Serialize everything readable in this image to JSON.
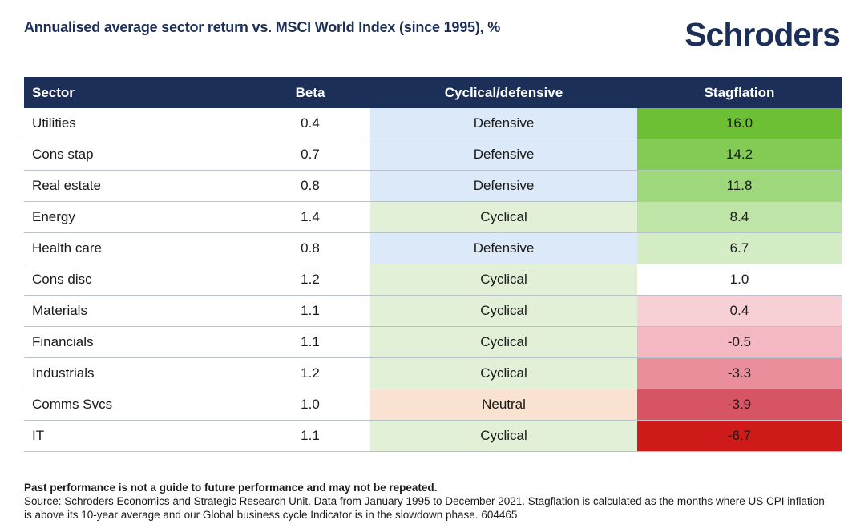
{
  "title": "Annualised average sector return vs. MSCI World Index (since 1995), %",
  "logo_text": "Schroders",
  "colors": {
    "header_bg": "#1c2f59",
    "defensive": "#dbe9f9",
    "cyclical": "#e2f0d8",
    "neutral": "#f9e2d2"
  },
  "chart_data": {
    "type": "table",
    "title": "Annualised average sector return vs. MSCI World Index (since 1995), %",
    "columns": [
      "Sector",
      "Beta",
      "Cyclical/defensive",
      "Stagflation"
    ],
    "rows": [
      {
        "sector": "Utilities",
        "beta": "0.4",
        "classification": "Defensive",
        "stagflation": "16.0",
        "stag_color": "#6dbf33"
      },
      {
        "sector": "Cons stap",
        "beta": "0.7",
        "classification": "Defensive",
        "stagflation": "14.2",
        "stag_color": "#84cb55"
      },
      {
        "sector": "Real estate",
        "beta": "0.8",
        "classification": "Defensive",
        "stagflation": "11.8",
        "stag_color": "#9fd77c"
      },
      {
        "sector": "Energy",
        "beta": "1.4",
        "classification": "Cyclical",
        "stagflation": "8.4",
        "stag_color": "#bfe4a8"
      },
      {
        "sector": "Health care",
        "beta": "0.8",
        "classification": "Defensive",
        "stagflation": "6.7",
        "stag_color": "#d4edc4"
      },
      {
        "sector": "Cons disc",
        "beta": "1.2",
        "classification": "Cyclical",
        "stagflation": "1.0",
        "stag_color": "#ffffff"
      },
      {
        "sector": "Materials",
        "beta": "1.1",
        "classification": "Cyclical",
        "stagflation": "0.4",
        "stag_color": "#f7d0d6"
      },
      {
        "sector": "Financials",
        "beta": "1.1",
        "classification": "Cyclical",
        "stagflation": "-0.5",
        "stag_color": "#f3b8c1"
      },
      {
        "sector": "Industrials",
        "beta": "1.2",
        "classification": "Cyclical",
        "stagflation": "-3.3",
        "stag_color": "#ea8e9b"
      },
      {
        "sector": "Comms Svcs",
        "beta": "1.0",
        "classification": "Neutral",
        "stagflation": "-3.9",
        "stag_color": "#d75465"
      },
      {
        "sector": "IT",
        "beta": "1.1",
        "classification": "Cyclical",
        "stagflation": "-6.7",
        "stag_color": "#cf1a1a"
      }
    ]
  },
  "footer": {
    "disclaimer": "Past performance is not a guide to future performance and may not be repeated.",
    "source": "Source: Schroders Economics and Strategic Research Unit. Data from January 1995 to December 2021. Stagflation is calculated as the months where US CPI inflation is above its 10-year average and our Global business cycle Indicator is in the slowdown phase. 604465"
  }
}
